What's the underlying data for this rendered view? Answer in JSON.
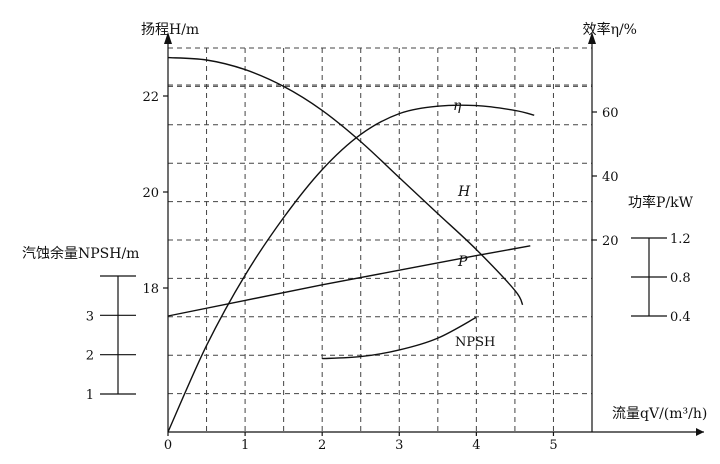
{
  "chart_data": {
    "type": "line",
    "title": "",
    "xlabel": "流量qV/(m³/h)",
    "x_ticks": [
      "0",
      "1",
      "2",
      "3",
      "4",
      "5"
    ],
    "xlim": [
      0,
      5.5
    ],
    "axes": {
      "head": {
        "label": "扬程H/m",
        "ticks": [
          "18",
          "20",
          "22"
        ],
        "range": [
          15,
          23
        ]
      },
      "efficiency": {
        "label": "效率η/%",
        "ticks": [
          "20",
          "40",
          "60"
        ],
        "range": [
          -40,
          80
        ]
      },
      "power": {
        "label": "功率P/kW",
        "ticks": [
          "1.2",
          "0.8",
          "0.4"
        ],
        "range": [
          0.4,
          1.2
        ]
      },
      "npsh": {
        "label": "汽蚀余量NPSH/m",
        "ticks": [
          "3",
          "2",
          "1"
        ],
        "range": [
          1,
          4
        ]
      }
    },
    "grid": true,
    "series": [
      {
        "name": "H",
        "axis": "head",
        "x": [
          0,
          0.5,
          1,
          1.5,
          2,
          2.5,
          3,
          3.5,
          4,
          4.5,
          4.6
        ],
        "values": [
          22.8,
          22.75,
          22.55,
          22.2,
          21.7,
          21.05,
          20.3,
          19.55,
          18.8,
          17.95,
          17.65
        ]
      },
      {
        "name": "η",
        "axis": "efficiency",
        "x": [
          0,
          0.5,
          1,
          1.5,
          2,
          2.5,
          3,
          3.5,
          4,
          4.5,
          4.75
        ],
        "values": [
          -40,
          -13,
          9,
          27,
          42,
          53,
          59.5,
          61.8,
          62,
          60.5,
          59
        ]
      },
      {
        "name": "P",
        "axis": "power",
        "x": [
          0,
          1,
          2,
          3,
          4,
          4.7
        ],
        "values": [
          0.4,
          0.56,
          0.72,
          0.87,
          1.02,
          1.12
        ]
      },
      {
        "name": "NPSH",
        "axis": "npsh",
        "x": [
          2,
          2.5,
          3,
          3.5,
          4
        ],
        "values": [
          1.9,
          1.95,
          2.12,
          2.42,
          2.95
        ]
      }
    ]
  }
}
